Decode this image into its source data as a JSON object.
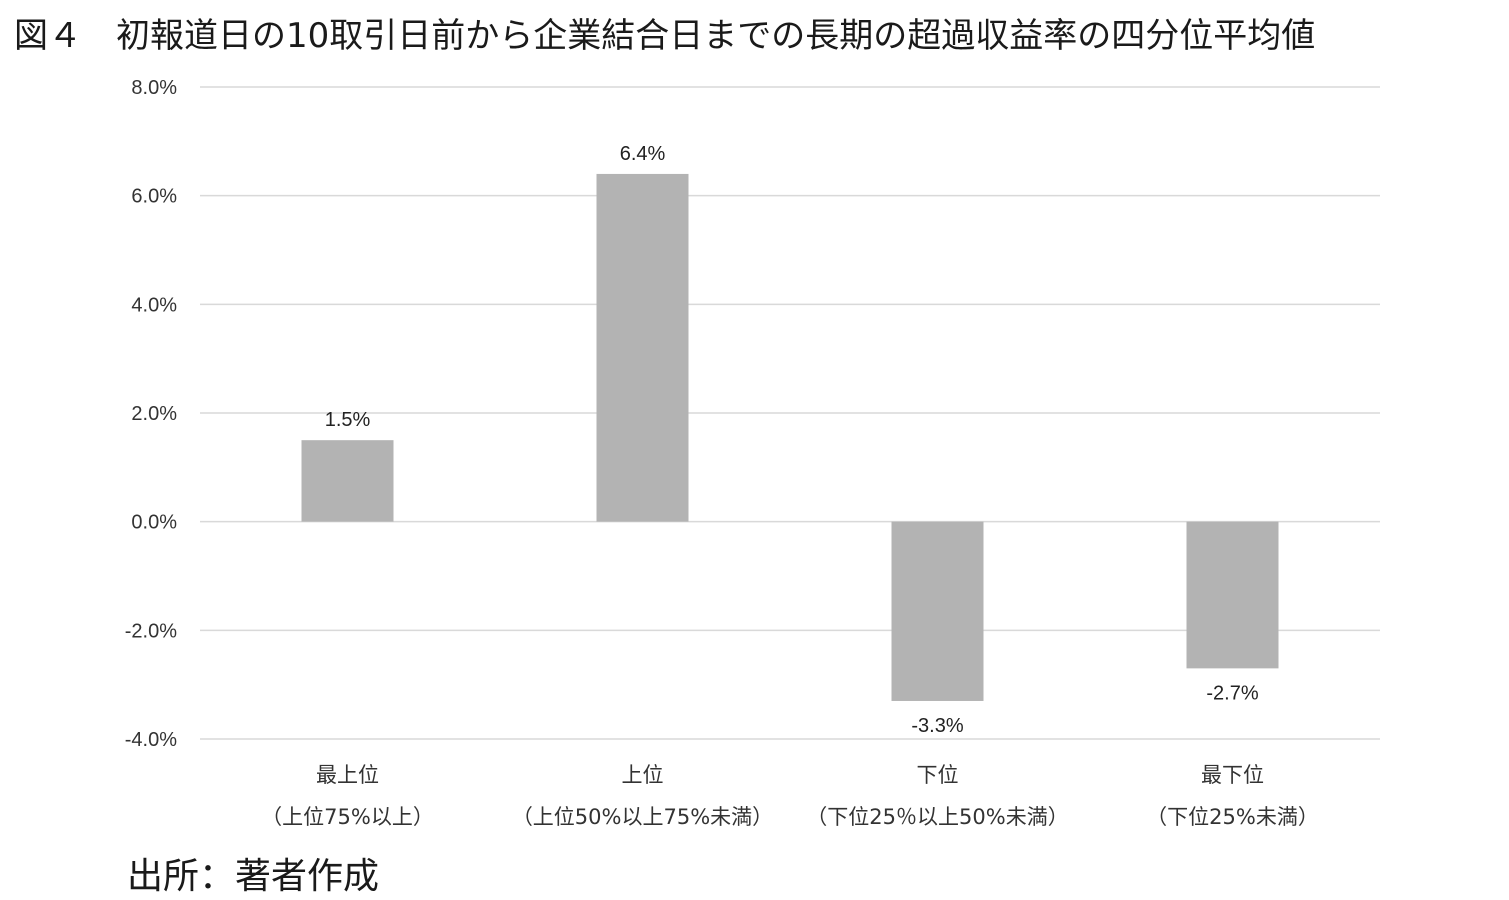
{
  "title": "図４　初報道日の10取引日前から企業結合日までの長期の超過収益率の四分位平均値",
  "source": "出所：著者作成",
  "chart_data": {
    "type": "bar",
    "title": "図４　初報道日の10取引日前から企業結合日までの長期の超過収益率の四分位平均値",
    "categories": [
      {
        "line1": "最上位",
        "line2": "（上位75%以上）"
      },
      {
        "line1": "上位",
        "line2": "（上位50%以上75%未満）"
      },
      {
        "line1": "下位",
        "line2": "（下位25％以上50%未満）"
      },
      {
        "line1": "最下位",
        "line2": "（下位25%未満）"
      }
    ],
    "values": [
      1.5,
      6.4,
      -3.3,
      -2.7
    ],
    "value_labels": [
      "1.5%",
      "6.4%",
      "-3.3%",
      "-2.7%"
    ],
    "ylim": [
      -4.0,
      8.0
    ],
    "yticks": [
      8.0,
      6.0,
      4.0,
      2.0,
      0.0,
      -2.0,
      -4.0
    ],
    "ytick_labels": [
      "8.0%",
      "6.0%",
      "4.0%",
      "2.0%",
      "0.0%",
      "-2.0%",
      "-4.0%"
    ],
    "grid": true,
    "legend": "none",
    "bar_color": "#b3b3b3",
    "grid_color": "#d9d9d9"
  }
}
